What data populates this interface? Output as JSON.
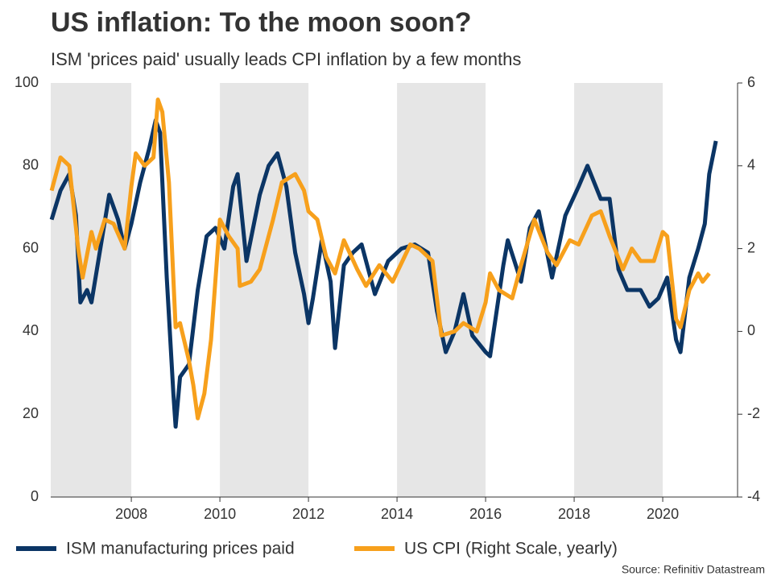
{
  "chart_data": {
    "type": "line",
    "title": "US inflation: To the moon soon?",
    "subtitle": "ISM 'prices paid' usually leads CPI inflation by a few months",
    "source": "Source: Refinitiv Datastream",
    "xlim": [
      2006.18,
      2021.69
    ],
    "xticks": [
      2008,
      2010,
      2012,
      2014,
      2016,
      2018,
      2020
    ],
    "ylim": [
      0,
      100
    ],
    "yticks": [
      0,
      20,
      40,
      60,
      80,
      100
    ],
    "y2lim": [
      -4,
      6
    ],
    "y2ticks": [
      -4,
      -2,
      0,
      2,
      4,
      6
    ],
    "legend": "bottom",
    "series": [
      {
        "name": "ISM manufacturing prices paid",
        "color": "#0b3565",
        "x": [
          2006.2,
          2006.4,
          2006.6,
          2006.75,
          2006.85,
          2007.0,
          2007.1,
          2007.3,
          2007.5,
          2007.7,
          2007.85,
          2008.0,
          2008.2,
          2008.4,
          2008.55,
          2008.65,
          2008.8,
          2008.95,
          2009.0,
          2009.1,
          2009.3,
          2009.5,
          2009.7,
          2009.9,
          2010.1,
          2010.3,
          2010.4,
          2010.6,
          2010.9,
          2011.1,
          2011.3,
          2011.5,
          2011.7,
          2011.9,
          2012.0,
          2012.1,
          2012.3,
          2012.5,
          2012.6,
          2012.8,
          2013.0,
          2013.2,
          2013.5,
          2013.8,
          2014.1,
          2014.4,
          2014.7,
          2014.9,
          2015.1,
          2015.3,
          2015.5,
          2015.7,
          2016.0,
          2016.1,
          2016.4,
          2016.5,
          2016.8,
          2017.0,
          2017.2,
          2017.5,
          2017.8,
          2018.1,
          2018.3,
          2018.6,
          2018.8,
          2019.0,
          2019.2,
          2019.5,
          2019.7,
          2019.9,
          2020.1,
          2020.3,
          2020.4,
          2020.6,
          2020.8,
          2020.95,
          2021.05,
          2021.2
        ],
        "values": [
          67,
          74,
          78,
          68,
          47,
          50,
          47,
          60,
          73,
          67,
          60,
          66,
          76,
          84,
          91,
          88,
          53,
          25,
          17,
          29,
          32,
          50,
          63,
          65,
          60,
          75,
          78,
          57,
          73,
          80,
          83,
          75,
          59,
          49,
          42,
          48,
          62,
          52,
          36,
          56,
          59,
          61,
          49,
          57,
          60,
          61,
          59,
          45,
          35,
          40,
          49,
          39,
          35,
          34,
          56,
          62,
          52,
          65,
          69,
          53,
          68,
          75,
          80,
          72,
          72,
          55,
          50,
          50,
          46,
          48,
          53,
          38,
          35,
          53,
          60,
          66,
          78,
          86
        ]
      },
      {
        "name": "US CPI (Right Scale, yearly)",
        "color": "#f7a01c",
        "axis": "y2",
        "x": [
          2006.2,
          2006.4,
          2006.6,
          2006.8,
          2006.9,
          2007.1,
          2007.2,
          2007.4,
          2007.6,
          2007.85,
          2008.0,
          2008.1,
          2008.3,
          2008.5,
          2008.6,
          2008.7,
          2008.85,
          2009.0,
          2009.1,
          2009.3,
          2009.4,
          2009.5,
          2009.65,
          2009.8,
          2010.0,
          2010.2,
          2010.4,
          2010.45,
          2010.7,
          2010.9,
          2011.2,
          2011.4,
          2011.7,
          2011.9,
          2012.0,
          2012.2,
          2012.4,
          2012.6,
          2012.8,
          2013.1,
          2013.3,
          2013.6,
          2013.9,
          2014.3,
          2014.5,
          2014.8,
          2015.0,
          2015.3,
          2015.5,
          2015.8,
          2016.0,
          2016.1,
          2016.3,
          2016.6,
          2016.8,
          2017.1,
          2017.4,
          2017.6,
          2017.9,
          2018.1,
          2018.4,
          2018.6,
          2018.8,
          2019.1,
          2019.3,
          2019.5,
          2019.8,
          2020.0,
          2020.1,
          2020.3,
          2020.4,
          2020.6,
          2020.8,
          2020.9,
          2021.05
        ],
        "values": [
          3.4,
          4.2,
          4.0,
          2.0,
          1.3,
          2.4,
          2.0,
          2.7,
          2.6,
          2.0,
          3.5,
          4.3,
          4.0,
          4.2,
          5.6,
          5.3,
          3.6,
          0.1,
          0.2,
          -0.7,
          -1.3,
          -2.1,
          -1.5,
          -0.2,
          2.7,
          2.3,
          2.0,
          1.1,
          1.2,
          1.5,
          2.7,
          3.6,
          3.8,
          3.4,
          2.9,
          2.7,
          1.8,
          1.4,
          2.2,
          1.5,
          1.1,
          1.6,
          1.2,
          2.1,
          2.0,
          1.7,
          -0.1,
          0.0,
          0.2,
          0.0,
          0.7,
          1.4,
          1.0,
          0.8,
          1.6,
          2.7,
          1.9,
          1.6,
          2.2,
          2.1,
          2.8,
          2.9,
          2.3,
          1.5,
          2.0,
          1.7,
          1.7,
          2.4,
          2.3,
          0.3,
          0.1,
          1.0,
          1.4,
          1.2,
          1.4
        ]
      }
    ]
  }
}
